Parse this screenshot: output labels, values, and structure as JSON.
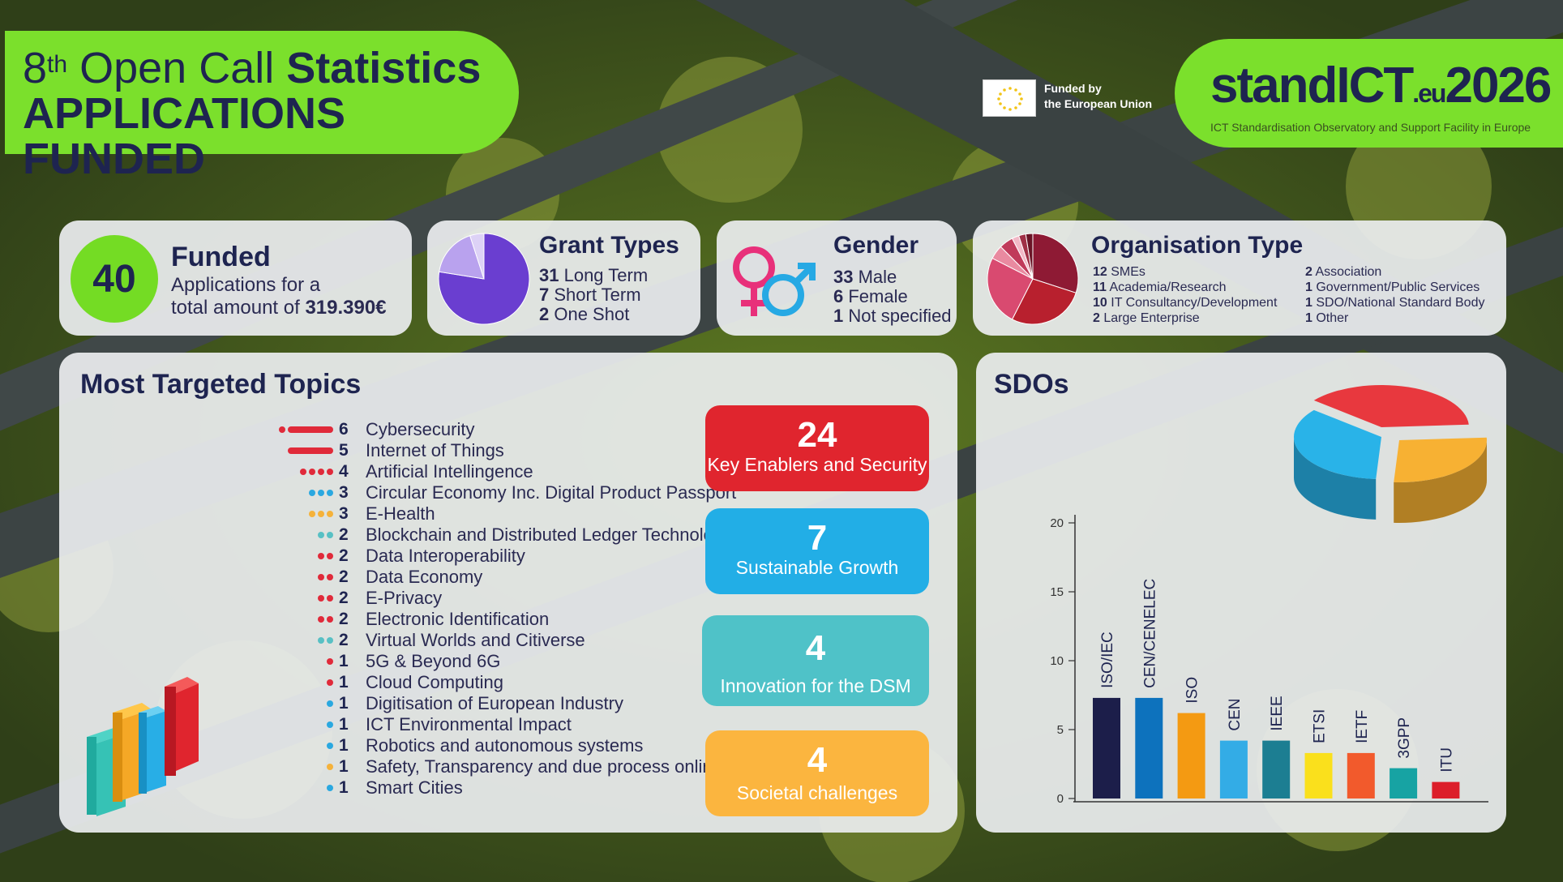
{
  "header": {
    "title_prefix_num": "8",
    "title_prefix_sup": "th",
    "title_prefix_rest": "Open Call",
    "title_bold": "Statistics",
    "subtitle": "APPLICATIONS FUNDED",
    "funded_by_line1": "Funded by",
    "funded_by_line2": "the European Union",
    "logo_text_a": "standICT",
    "logo_text_eu": ".eu",
    "logo_text_b": "2026",
    "logo_tagline": "ICT Standardisation Observatory and Support Facility in Europe"
  },
  "funded": {
    "count": "40",
    "title": "Funded",
    "line1": "Applications for a",
    "line2_prefix": "total amount of ",
    "amount": "319.390€"
  },
  "grant_types": {
    "title": "Grant Types",
    "items": [
      {
        "n": "31",
        "label": "Long Term"
      },
      {
        "n": "7",
        "label": "Short Term"
      },
      {
        "n": "2",
        "label": "One Shot"
      }
    ]
  },
  "gender": {
    "title": "Gender",
    "items": [
      {
        "n": "33",
        "label": "Male"
      },
      {
        "n": "6",
        "label": "Female"
      },
      {
        "n": "1",
        "label": "Not specified"
      }
    ]
  },
  "org_type": {
    "title": "Organisation Type",
    "left": [
      {
        "n": "12",
        "label": "SMEs"
      },
      {
        "n": "11",
        "label": "Academia/Research"
      },
      {
        "n": "10",
        "label": "IT Consultancy/Development"
      },
      {
        "n": "2",
        "label": "Large Enterprise"
      }
    ],
    "right": [
      {
        "n": "2",
        "label": "Association"
      },
      {
        "n": "1",
        "label": "Government/Public Services"
      },
      {
        "n": "1",
        "label": "SDO/National Standard Body"
      },
      {
        "n": "1",
        "label": "Other"
      }
    ]
  },
  "topics": {
    "title": "Most Targeted Topics",
    "items": [
      {
        "n": "6",
        "label": "Cybersecurity",
        "color": "#e02a3a",
        "style": "bar"
      },
      {
        "n": "5",
        "label": "Internet of Things",
        "color": "#e02a3a",
        "style": "bar"
      },
      {
        "n": "4",
        "label": "Artificial Intellingence",
        "color": "#e02a3a",
        "style": "dots"
      },
      {
        "n": "3",
        "label": "Circular Economy Inc. Digital Product Passport",
        "color": "#2aa8e0",
        "style": "dots"
      },
      {
        "n": "3",
        "label": "E-Health",
        "color": "#f5b23a",
        "style": "dots"
      },
      {
        "n": "2",
        "label": "Blockchain and Distributed Ledger Technologies",
        "color": "#58c0c4",
        "style": "dots"
      },
      {
        "n": "2",
        "label": "Data Interoperability",
        "color": "#e02a3a",
        "style": "dots"
      },
      {
        "n": "2",
        "label": "Data Economy",
        "color": "#e02a3a",
        "style": "dots"
      },
      {
        "n": "2",
        "label": "E-Privacy",
        "color": "#e02a3a",
        "style": "dots"
      },
      {
        "n": "2",
        "label": "Electronic Identification",
        "color": "#e02a3a",
        "style": "dots"
      },
      {
        "n": "2",
        "label": "Virtual Worlds and Citiverse",
        "color": "#58c0c4",
        "style": "dots"
      },
      {
        "n": "1",
        "label": "5G & Beyond 6G",
        "color": "#e02a3a",
        "style": "dots"
      },
      {
        "n": "1",
        "label": "Cloud Computing",
        "color": "#e02a3a",
        "style": "dots"
      },
      {
        "n": "1",
        "label": "Digitisation of European Industry",
        "color": "#2aa8e0",
        "style": "dots"
      },
      {
        "n": "1",
        "label": "ICT Environmental Impact",
        "color": "#2aa8e0",
        "style": "dots"
      },
      {
        "n": "1",
        "label": "Robotics and autonomous systems",
        "color": "#2aa8e0",
        "style": "dots"
      },
      {
        "n": "1",
        "label": "Safety, Transparency and due process online",
        "color": "#f5b23a",
        "style": "dots"
      },
      {
        "n": "1",
        "label": "Smart Cities",
        "color": "#2aa8e0",
        "style": "dots"
      }
    ]
  },
  "categories": [
    {
      "n": "24",
      "label": "Key Enablers and Security",
      "color": "#e0252e"
    },
    {
      "n": "7",
      "label": "Sustainable Growth",
      "color": "#22aee6"
    },
    {
      "n": "4",
      "label": "Innovation for the DSM",
      "color": "#4fc2c8"
    },
    {
      "n": "4",
      "label": "Societal challenges",
      "color": "#fbb53f"
    }
  ],
  "sdos": {
    "title": "SDOs"
  },
  "chart_data": [
    {
      "type": "bar",
      "title": "SDOs",
      "categories": [
        "ISO/IEC",
        "CEN/CENELEC",
        "ISO",
        "CEN",
        "IEEE",
        "ETSI",
        "IETF",
        "3GPP",
        "ITU"
      ],
      "values": [
        7.3,
        7.3,
        6.2,
        4.2,
        4.2,
        3.3,
        3.3,
        2.2,
        1.2
      ],
      "colors": [
        "#1c1e4a",
        "#0d72bd",
        "#f49a12",
        "#33ace6",
        "#1c7e92",
        "#fae01c",
        "#f25a2c",
        "#17a3a3",
        "#dc1e2a"
      ],
      "ylim": [
        0,
        20
      ],
      "yticks": [
        "0",
        "5",
        "10",
        "15",
        "20"
      ]
    },
    {
      "type": "pie",
      "title": "Grant Types",
      "categories": [
        "Long Term",
        "Short Term",
        "One Shot"
      ],
      "values": [
        31,
        7,
        2
      ],
      "colors": [
        "#6a3ed0",
        "#b9a2ee",
        "#ddd2f6"
      ]
    },
    {
      "type": "pie",
      "title": "Organisation Type",
      "categories": [
        "SMEs",
        "Academia/Research",
        "IT Consultancy/Development",
        "Large Enterprise",
        "Association",
        "Government/Public Services",
        "SDO/National Standard Body",
        "Other"
      ],
      "values": [
        12,
        11,
        10,
        2,
        2,
        1,
        1,
        1
      ],
      "colors": [
        "#8e1a34",
        "#b8202e",
        "#d94a70",
        "#e98aa0",
        "#c03a5a",
        "#f2b8c6",
        "#a03046",
        "#6a1426"
      ]
    },
    {
      "type": "pie",
      "title": "SDOs",
      "categories": [
        "",
        "",
        ""
      ],
      "values": [
        38,
        27,
        35
      ],
      "colors": [
        "#e8383e",
        "#f7b133",
        "#29b3e8"
      ]
    }
  ]
}
